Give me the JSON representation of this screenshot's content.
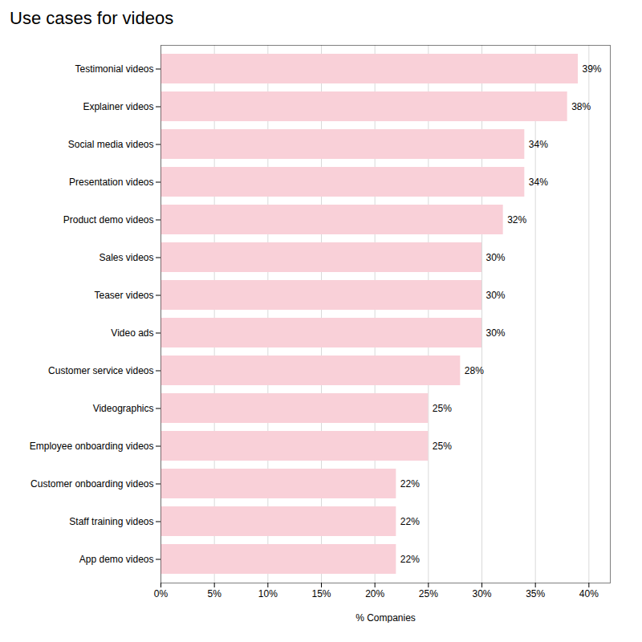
{
  "chart_data": {
    "type": "bar",
    "orientation": "horizontal",
    "title": "Use cases for videos",
    "xlabel": "% Companies",
    "categories": [
      "App demo videos",
      "Staff training videos",
      "Customer onboarding videos",
      "Employee onboarding videos",
      "Videographics",
      "Customer service videos",
      "Video ads",
      "Teaser videos",
      "Sales videos",
      "Product demo videos",
      "Presentation videos",
      "Social media videos",
      "Explainer videos",
      "Testimonial videos"
    ],
    "values": [
      22,
      22,
      22,
      25,
      25,
      28,
      30,
      30,
      30,
      32,
      34,
      34,
      38,
      39
    ],
    "value_labels": [
      "22%",
      "22%",
      "22%",
      "25%",
      "25%",
      "28%",
      "30%",
      "30%",
      "30%",
      "32%",
      "34%",
      "34%",
      "38%",
      "39%"
    ],
    "data_labels": true,
    "color": "#f9d0d8",
    "xlim": [
      0,
      42
    ],
    "xticks": [
      {
        "value": 0,
        "label": "0%"
      },
      {
        "value": 5,
        "label": "5%"
      },
      {
        "value": 10,
        "label": "10%"
      },
      {
        "value": 15,
        "label": "15%"
      },
      {
        "value": 20,
        "label": "20%"
      },
      {
        "value": 25,
        "label": "25%"
      },
      {
        "value": 30,
        "label": "30%"
      },
      {
        "value": 35,
        "label": "35%"
      },
      {
        "value": 40,
        "label": "40%"
      }
    ],
    "grid": true
  }
}
